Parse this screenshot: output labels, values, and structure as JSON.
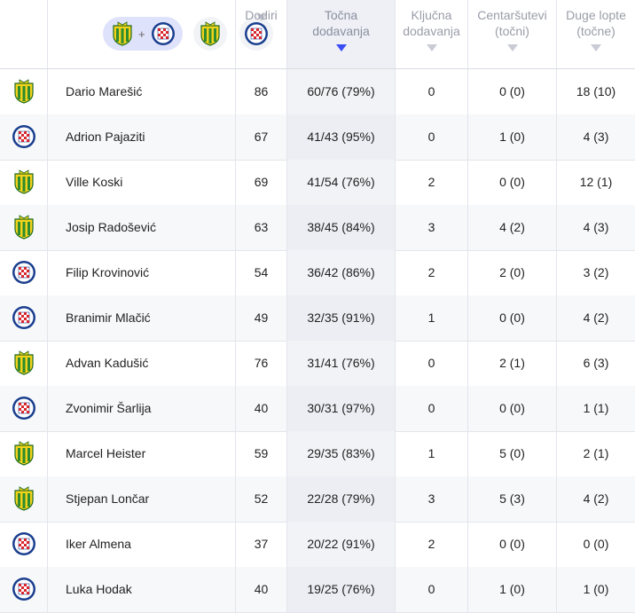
{
  "header": {
    "filter_plus": "+",
    "columns": [
      {
        "label_line1": "Dodiri",
        "label_line2": ""
      },
      {
        "label_line1": "Točna",
        "label_line2": "dodavanja"
      },
      {
        "label_line1": "Ključna",
        "label_line2": "dodavanja"
      },
      {
        "label_line1": "Centaršutevi",
        "label_line2": "(točni)"
      },
      {
        "label_line1": "Duge lopte",
        "label_line2": "(točne)"
      }
    ]
  },
  "colors": {
    "team_a": "#2e8b2e",
    "team_b": "#1a3f8f",
    "sort_active": "#3b4cf5"
  },
  "rows": [
    {
      "team": "a",
      "name": "Dario Marešić",
      "touches": "86",
      "passes": "60/76 (79%)",
      "key": "0",
      "crosses": "0 (0)",
      "long": "18 (10)"
    },
    {
      "team": "b",
      "name": "Adrion Pajaziti",
      "touches": "67",
      "passes": "41/43 (95%)",
      "key": "0",
      "crosses": "1 (0)",
      "long": "4 (3)"
    },
    {
      "team": "a",
      "name": "Ville Koski",
      "touches": "69",
      "passes": "41/54 (76%)",
      "key": "2",
      "crosses": "0 (0)",
      "long": "12 (1)"
    },
    {
      "team": "a",
      "name": "Josip Radošević",
      "touches": "63",
      "passes": "38/45 (84%)",
      "key": "3",
      "crosses": "4 (2)",
      "long": "4 (3)"
    },
    {
      "team": "b",
      "name": "Filip Krovinović",
      "touches": "54",
      "passes": "36/42 (86%)",
      "key": "2",
      "crosses": "2 (0)",
      "long": "3 (2)"
    },
    {
      "team": "b",
      "name": "Branimir Mlačić",
      "touches": "49",
      "passes": "32/35 (91%)",
      "key": "1",
      "crosses": "0 (0)",
      "long": "4 (2)"
    },
    {
      "team": "a",
      "name": "Advan Kadušić",
      "touches": "76",
      "passes": "31/41 (76%)",
      "key": "0",
      "crosses": "2 (1)",
      "long": "6 (3)"
    },
    {
      "team": "b",
      "name": "Zvonimir Šarlija",
      "touches": "40",
      "passes": "30/31 (97%)",
      "key": "0",
      "crosses": "0 (0)",
      "long": "1 (1)"
    },
    {
      "team": "a",
      "name": "Marcel Heister",
      "touches": "59",
      "passes": "29/35 (83%)",
      "key": "1",
      "crosses": "5 (0)",
      "long": "2 (1)"
    },
    {
      "team": "a",
      "name": "Stjepan Lončar",
      "touches": "52",
      "passes": "22/28 (79%)",
      "key": "3",
      "crosses": "5 (3)",
      "long": "4 (2)"
    },
    {
      "team": "b",
      "name": "Iker Almena",
      "touches": "37",
      "passes": "20/22 (91%)",
      "key": "2",
      "crosses": "0 (0)",
      "long": "0 (0)"
    },
    {
      "team": "b",
      "name": "Luka Hodak",
      "touches": "40",
      "passes": "19/25 (76%)",
      "key": "0",
      "crosses": "1 (0)",
      "long": "1 (0)"
    }
  ]
}
